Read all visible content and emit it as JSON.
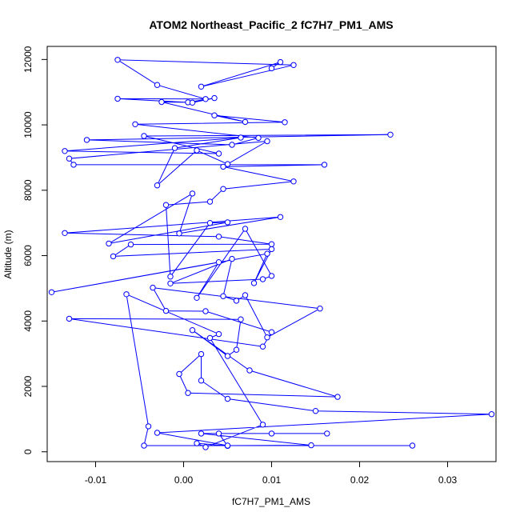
{
  "chart_data": {
    "type": "line",
    "title": "ATOM2 Northeast_Pacific_2 fC7H7_PM1_AMS",
    "xlabel": "fC7H7_PM1_AMS",
    "ylabel": "Altitude (m)",
    "xlim": [
      -0.0155,
      0.0355
    ],
    "ylim": [
      -300,
      12400
    ],
    "x_ticks": [
      -0.01,
      0.0,
      0.01,
      0.02,
      0.03
    ],
    "x_tick_labels": [
      "-0.01",
      "0.00",
      "0.01",
      "0.02",
      "0.03"
    ],
    "y_ticks": [
      0,
      2000,
      4000,
      6000,
      8000,
      10000,
      12000
    ],
    "y_tick_labels": [
      "0",
      "2000",
      "4000",
      "6000",
      "8000",
      "10000",
      "12000"
    ],
    "grid": false,
    "legend": "none",
    "marker": "open-circle",
    "color": "#0000ff",
    "series": [
      {
        "points": [
          {
            "x": 0.026,
            "y": 190
          },
          {
            "x": -0.0045,
            "y": 190
          },
          {
            "x": -0.004,
            "y": 780
          },
          {
            "x": -0.0065,
            "y": 4820
          },
          {
            "x": 0.004,
            "y": 3600
          },
          {
            "x": 0.003,
            "y": 3480
          },
          {
            "x": 0.009,
            "y": 830
          },
          {
            "x": 0.0025,
            "y": 140
          },
          {
            "x": 0.0015,
            "y": 260
          },
          {
            "x": 0.005,
            "y": 180
          },
          {
            "x": 0.004,
            "y": 560
          },
          {
            "x": 0.01,
            "y": 560
          },
          {
            "x": 0.0163,
            "y": 560
          },
          {
            "x": 0.002,
            "y": 560
          },
          {
            "x": 0.0145,
            "y": 200
          },
          {
            "x": 0.005,
            "y": 190
          },
          {
            "x": -0.003,
            "y": 580
          },
          {
            "x": 0.035,
            "y": 1150
          },
          {
            "x": 0.015,
            "y": 1250
          },
          {
            "x": 0.005,
            "y": 1620
          },
          {
            "x": 0.002,
            "y": 2180
          },
          {
            "x": 0.002,
            "y": 2990
          },
          {
            "x": -0.0005,
            "y": 2380
          },
          {
            "x": 0.0005,
            "y": 1800
          },
          {
            "x": 0.0175,
            "y": 1680
          },
          {
            "x": 0.0075,
            "y": 2490
          },
          {
            "x": 0.001,
            "y": 3720
          },
          {
            "x": 0.005,
            "y": 2930
          },
          {
            "x": 0.006,
            "y": 3120
          },
          {
            "x": 0.0065,
            "y": 4050
          },
          {
            "x": -0.013,
            "y": 4070
          },
          {
            "x": 0.009,
            "y": 3220
          },
          {
            "x": 0.01,
            "y": 3660
          },
          {
            "x": 0.0025,
            "y": 4300
          },
          {
            "x": -0.002,
            "y": 4310
          },
          {
            "x": -0.0035,
            "y": 5020
          },
          {
            "x": 0.0155,
            "y": 4380
          },
          {
            "x": 0.0095,
            "y": 3500
          },
          {
            "x": 0.007,
            "y": 4790
          },
          {
            "x": 0.006,
            "y": 4620
          },
          {
            "x": 0.0045,
            "y": 4760
          },
          {
            "x": 0.0055,
            "y": 5900
          },
          {
            "x": -0.0015,
            "y": 5150
          },
          {
            "x": 0.009,
            "y": 5280
          },
          {
            "x": 0.01,
            "y": 5380
          },
          {
            "x": 0.007,
            "y": 6820
          },
          {
            "x": 0.0015,
            "y": 4710
          },
          {
            "x": 0.004,
            "y": 5800
          },
          {
            "x": -0.015,
            "y": 4880
          },
          {
            "x": 0.0095,
            "y": 6060
          },
          {
            "x": 0.008,
            "y": 5160
          },
          {
            "x": 0.01,
            "y": 6200
          },
          {
            "x": -0.008,
            "y": 5980
          },
          {
            "x": -0.006,
            "y": 6340
          },
          {
            "x": 0.01,
            "y": 6350
          },
          {
            "x": 0.004,
            "y": 6580
          },
          {
            "x": -0.0135,
            "y": 6690
          },
          {
            "x": 0.011,
            "y": 7180
          },
          {
            "x": -0.0005,
            "y": 6680
          },
          {
            "x": 0.001,
            "y": 7900
          },
          {
            "x": -0.0085,
            "y": 6370
          },
          {
            "x": 0.005,
            "y": 7020
          },
          {
            "x": 0.003,
            "y": 7000
          },
          {
            "x": -0.0015,
            "y": 5360
          },
          {
            "x": -0.002,
            "y": 7550
          },
          {
            "x": 0.003,
            "y": 7650
          },
          {
            "x": 0.0045,
            "y": 8040
          },
          {
            "x": 0.0125,
            "y": 8270
          },
          {
            "x": 0.0045,
            "y": 8720
          },
          {
            "x": 0.016,
            "y": 8780
          },
          {
            "x": -0.0125,
            "y": 8780
          },
          {
            "x": -0.013,
            "y": 8970
          },
          {
            "x": 0.0095,
            "y": 9500
          },
          {
            "x": 0.005,
            "y": 8800
          },
          {
            "x": 0.0015,
            "y": 9220
          },
          {
            "x": -0.003,
            "y": 8150
          },
          {
            "x": -0.001,
            "y": 9290
          },
          {
            "x": 0.0065,
            "y": 9610
          },
          {
            "x": -0.0135,
            "y": 9200
          },
          {
            "x": 0.004,
            "y": 9120
          },
          {
            "x": -0.0045,
            "y": 9660
          },
          {
            "x": 0.0235,
            "y": 9700
          },
          {
            "x": -0.011,
            "y": 9540
          },
          {
            "x": 0.0055,
            "y": 9390
          },
          {
            "x": 0.0085,
            "y": 9600
          },
          {
            "x": -0.0055,
            "y": 10020
          },
          {
            "x": 0.0115,
            "y": 10080
          },
          {
            "x": 0.0035,
            "y": 10290
          },
          {
            "x": 0.007,
            "y": 10090
          },
          {
            "x": -0.0025,
            "y": 10700
          },
          {
            "x": 0.0005,
            "y": 10690
          },
          {
            "x": 0.0035,
            "y": 10820
          },
          {
            "x": 0.001,
            "y": 10680
          },
          {
            "x": -0.0075,
            "y": 10800
          },
          {
            "x": 0.0025,
            "y": 10790
          },
          {
            "x": -0.003,
            "y": 11220
          },
          {
            "x": -0.0075,
            "y": 11990
          },
          {
            "x": 0.0125,
            "y": 11830
          },
          {
            "x": 0.002,
            "y": 11170
          },
          {
            "x": 0.011,
            "y": 11920
          },
          {
            "x": 0.01,
            "y": 11730
          }
        ]
      }
    ]
  }
}
